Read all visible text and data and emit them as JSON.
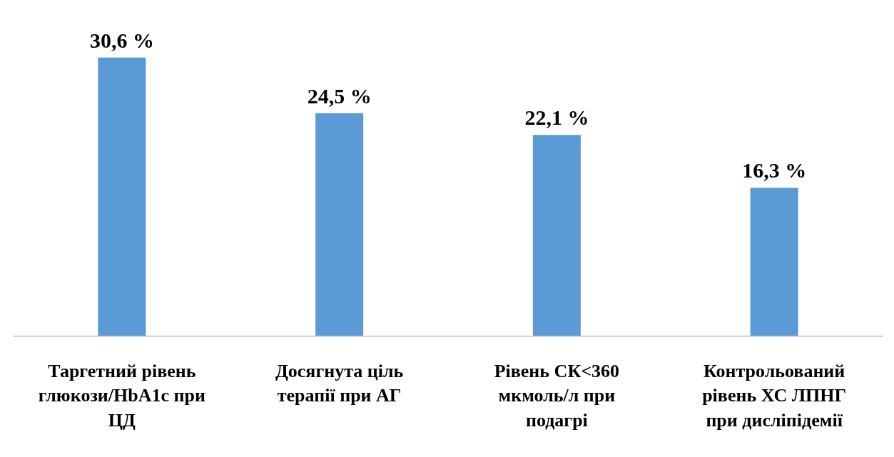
{
  "chart_data": {
    "type": "bar",
    "categories": [
      "Таргетний рівень глюкози/HbA1c при ЦД",
      "Досягнута ціль терапії при АГ",
      "Рівень СК<360 мкмоль/л при подагрі",
      "Контрольований рівень ХС ЛПНГ при дисліпідемії"
    ],
    "values": [
      30.6,
      24.5,
      22.1,
      16.3
    ],
    "value_labels": [
      "30,6 %",
      "24,5 %",
      "22,1 %",
      "16,3 %"
    ],
    "color": "#5b9bd5",
    "grid": false
  }
}
